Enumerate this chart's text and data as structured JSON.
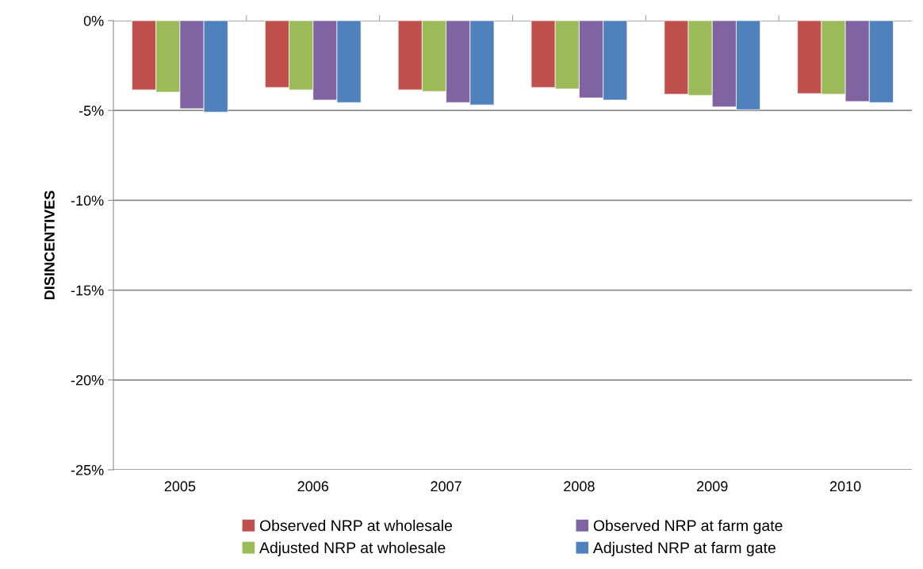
{
  "chart_data": {
    "type": "bar",
    "ylabel": "DISINCENTIVES",
    "categories": [
      "2005",
      "2006",
      "2007",
      "2008",
      "2009",
      "2010"
    ],
    "series": [
      {
        "name": "Observed NRP at wholesale",
        "color": "#c0504d",
        "values": [
          -3.85,
          -3.72,
          -3.85,
          -3.72,
          -4.1,
          -4.06
        ]
      },
      {
        "name": "Adjusted NRP at wholesale",
        "color": "#9bbb59",
        "values": [
          -3.98,
          -3.85,
          -3.94,
          -3.8,
          -4.16,
          -4.1
        ]
      },
      {
        "name": "Observed NRP at farm gate",
        "color": "#8064a2",
        "values": [
          -4.9,
          -4.42,
          -4.56,
          -4.3,
          -4.8,
          -4.5
        ]
      },
      {
        "name": "Adjusted NRP at farm gate",
        "color": "#4f81bd",
        "values": [
          -5.09,
          -4.56,
          -4.69,
          -4.42,
          -4.96,
          -4.56
        ]
      }
    ],
    "ylim": [
      -25,
      0
    ],
    "yticks": [
      {
        "value": 0,
        "label": "0%"
      },
      {
        "value": -5,
        "label": "-5%"
      },
      {
        "value": -10,
        "label": "-10%"
      },
      {
        "value": -15,
        "label": "-15%"
      },
      {
        "value": -20,
        "label": "-20%"
      },
      {
        "value": -25,
        "label": "-25%"
      }
    ],
    "grid": "y",
    "legend": "bottom"
  }
}
